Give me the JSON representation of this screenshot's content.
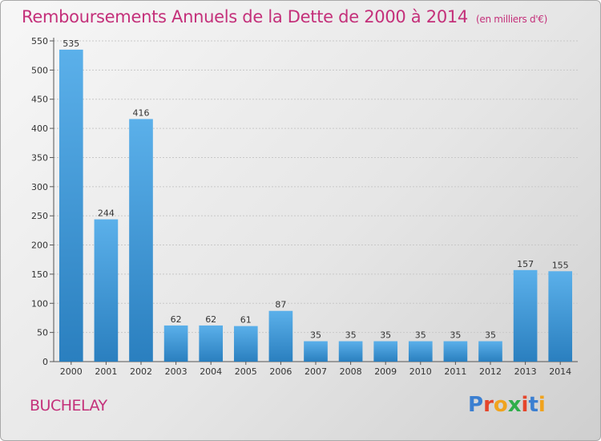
{
  "header": {
    "title": "Remboursements Annuels de la Dette de 2000 à 2014",
    "unit": "(en milliers d'€)"
  },
  "footer": {
    "commune": "BUCHELAY",
    "brand": "Proxiti"
  },
  "colors": {
    "bar_top": "#5bb0ea",
    "bar_bottom": "#2a7fbf",
    "title": "#c4307a"
  },
  "chart_data": {
    "type": "bar",
    "title": "Remboursements Annuels de la Dette de 2000 à 2014",
    "xlabel": "",
    "ylabel": "",
    "categories": [
      "2000",
      "2001",
      "2002",
      "2003",
      "2004",
      "2005",
      "2006",
      "2007",
      "2008",
      "2009",
      "2010",
      "2011",
      "2012",
      "2013",
      "2014"
    ],
    "values": [
      535,
      244,
      416,
      62,
      62,
      61,
      87,
      35,
      35,
      35,
      35,
      35,
      35,
      157,
      155
    ],
    "ylim": [
      0,
      550
    ],
    "yticks": [
      0,
      50,
      100,
      150,
      200,
      250,
      300,
      350,
      400,
      450,
      500,
      550
    ],
    "grid": true,
    "data_labels": true
  }
}
